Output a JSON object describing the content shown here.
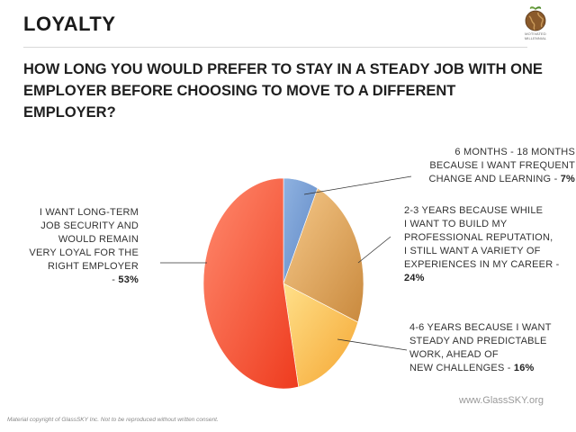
{
  "header": {
    "title": "LOYALTY",
    "logo_lines": [
      "MOTIVATED",
      "MILLENNIAL"
    ]
  },
  "question": "HOW LONG YOU WOULD PREFER TO STAY IN A STEADY JOB WITH ONE EMPLOYER BEFORE CHOOSING TO MOVE TO A DIFFERENT EMPLOYER?",
  "chart_data": {
    "type": "pie",
    "title": "HOW LONG YOU WOULD PREFER TO STAY IN A STEADY JOB WITH ONE EMPLOYER BEFORE CHOOSING TO MOVE TO A DIFFERENT EMPLOYER?",
    "start_angle_deg": 0,
    "direction": "clockwise",
    "slices": [
      {
        "label_lines": [
          "6 MONTHS - 18 MONTHS",
          "BECAUSE I WANT FREQUENT",
          "CHANGE AND LEARNING - "
        ],
        "value": 7,
        "pct_text": "7%",
        "color": "#8fb2e0",
        "color2": "#5f88c6"
      },
      {
        "label_lines": [
          "2-3 YEARS BECAUSE WHILE",
          "I WANT TO BUILD MY",
          "PROFESSIONAL REPUTATION,",
          "I STILL WANT A VARIETY OF",
          "EXPERIENCES IN MY CAREER - "
        ],
        "value": 24,
        "pct_text": "24%",
        "color": "#f6c98a",
        "color2": "#c9893d"
      },
      {
        "label_lines": [
          "4-6 YEARS BECAUSE I WANT",
          "STEADY AND PREDICTABLE",
          "WORK, AHEAD OF",
          "NEW CHALLENGES - "
        ],
        "value": 16,
        "pct_text": "16%",
        "color": "#ffe08a",
        "color2": "#f5a632"
      },
      {
        "label_lines": [
          "I WANT LONG-TERM",
          "JOB SECURITY AND",
          "WOULD REMAIN",
          "VERY LOYAL FOR THE",
          "RIGHT EMPLOYER",
          "- "
        ],
        "value": 53,
        "pct_text": "53%",
        "color": "#ff8a6e",
        "color2": "#ee3b1e"
      }
    ],
    "legend": "none"
  },
  "footer": {
    "source": "www.GlassSKY.org",
    "copyright": "Material copyright of GlassSKY Inc. Not to be reproduced without written consent."
  }
}
